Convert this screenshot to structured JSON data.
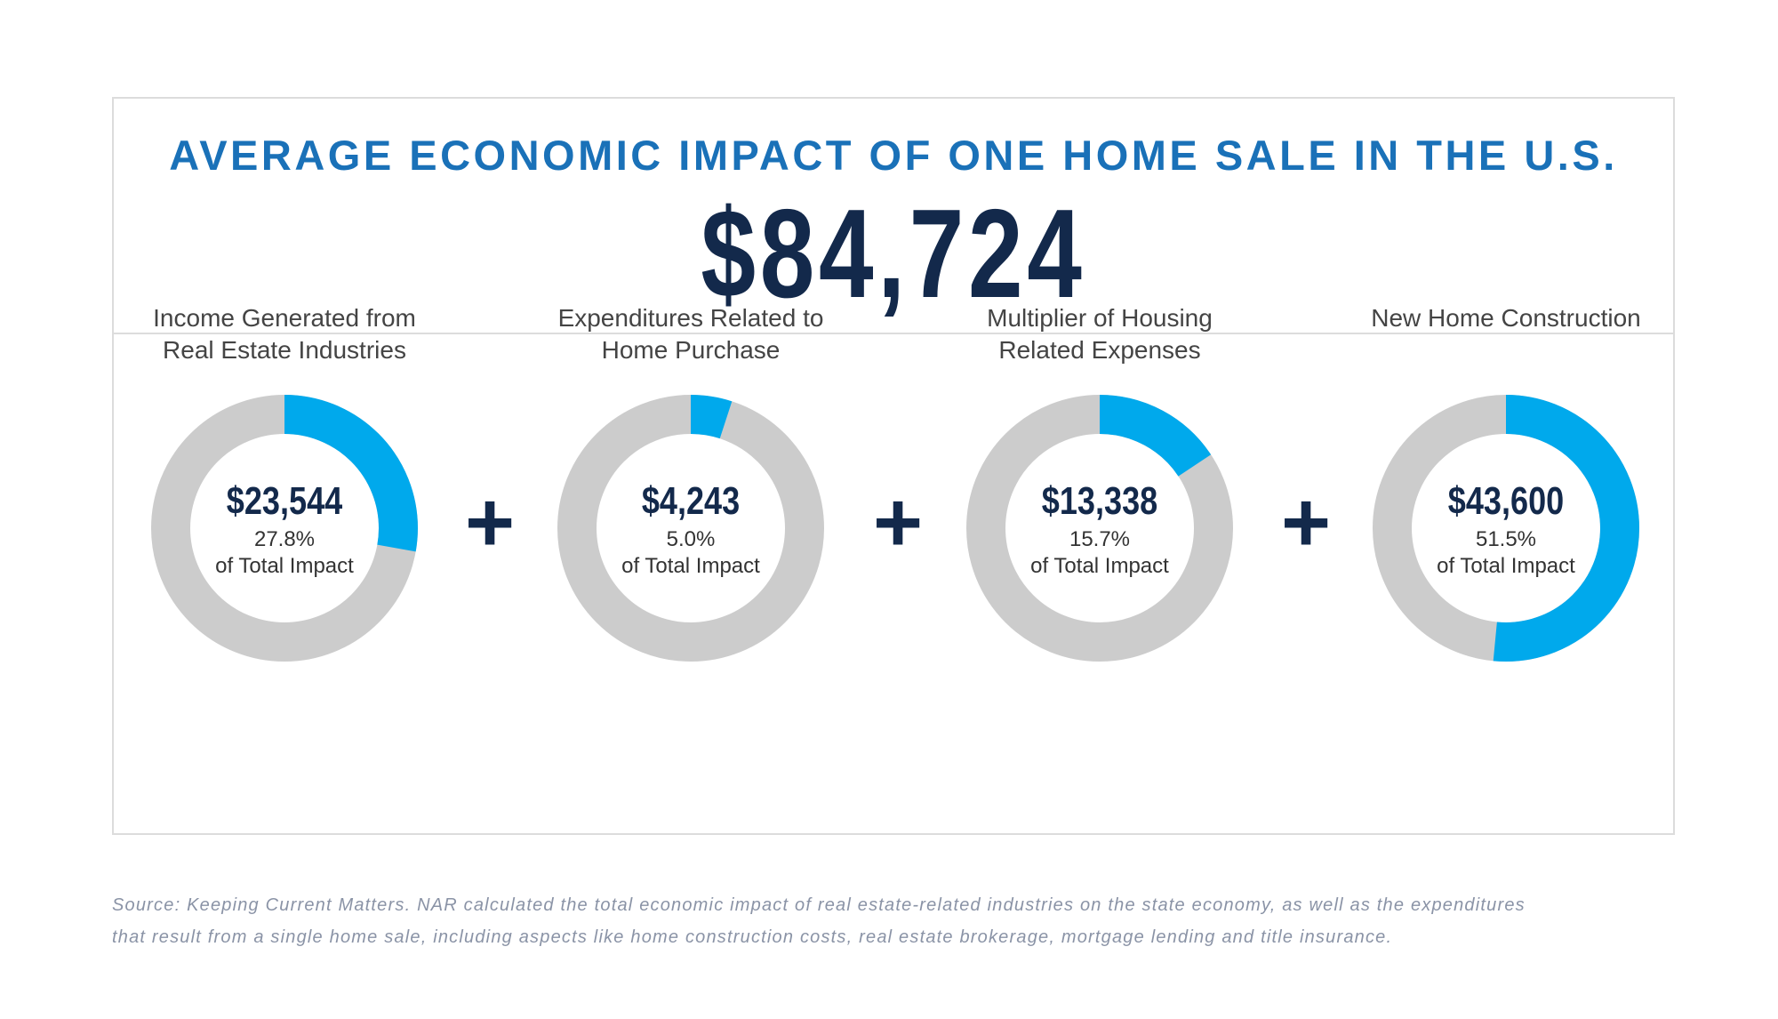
{
  "header": {
    "title": "AVERAGE ECONOMIC IMPACT OF ONE HOME SALE IN THE U.S.",
    "total": "$84,724"
  },
  "colors": {
    "accent": "#00a9ec",
    "track": "#cccccc",
    "navy": "#13294b",
    "title_blue": "#1a71b8"
  },
  "plus_sign": "+",
  "chart_data": {
    "type": "pie",
    "variant": "donut",
    "title": "AVERAGE ECONOMIC IMPACT OF ONE HOME SALE IN THE U.S.",
    "total": 84724,
    "items": [
      {
        "label_line1": "Income Generated from",
        "label_line2": "Real Estate Industries",
        "amount": "$23,544",
        "value": 23544,
        "percent": 27.8,
        "percent_label": "27.8%",
        "of_label": "of Total Impact"
      },
      {
        "label_line1": "Expenditures Related to",
        "label_line2": "Home Purchase",
        "amount": "$4,243",
        "value": 4243,
        "percent": 5.0,
        "percent_label": "5.0%",
        "of_label": "of Total Impact"
      },
      {
        "label_line1": "Multiplier of Housing",
        "label_line2": "Related Expenses",
        "amount": "$13,338",
        "value": 13338,
        "percent": 15.7,
        "percent_label": "15.7%",
        "of_label": "of Total Impact"
      },
      {
        "label_line1": "New Home Construction",
        "label_line2": "",
        "amount": "$43,600",
        "value": 43600,
        "percent": 51.5,
        "percent_label": "51.5%",
        "of_label": "of Total Impact"
      }
    ]
  },
  "source": {
    "line1": "Source: Keeping Current Matters. NAR calculated the total economic impact of real estate-related industries on the state economy, as well as the expenditures",
    "line2": "that result from a single home sale, including aspects like home construction costs, real estate brokerage, mortgage lending and title insurance."
  }
}
